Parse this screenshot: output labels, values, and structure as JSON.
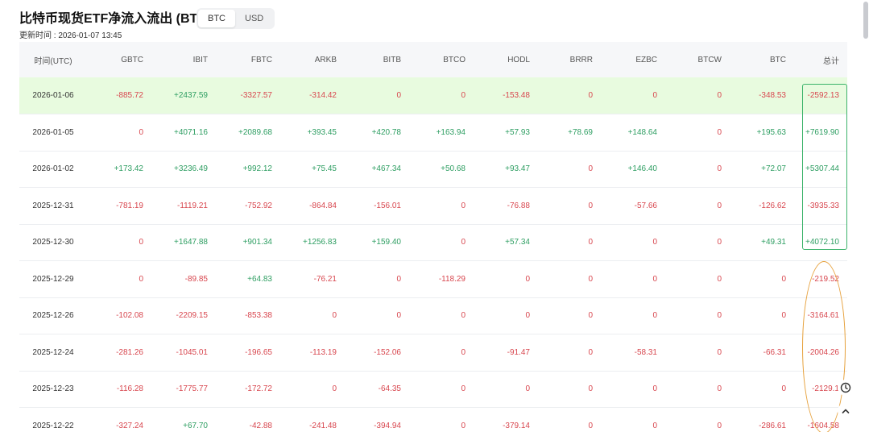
{
  "header": {
    "title": "比特币现货ETF净流入流出 (BTC)",
    "currency_toggle": [
      {
        "label": "BTC",
        "active": true
      },
      {
        "label": "USD",
        "active": false
      }
    ],
    "update_time": "更新时间 : 2026-01-07 13:45"
  },
  "table": {
    "columns": [
      "时间(UTC)",
      "GBTC",
      "IBIT",
      "FBTC",
      "ARKB",
      "BITB",
      "BTCO",
      "HODL",
      "BRRR",
      "EZBC",
      "BTCW",
      "BTC",
      "总计"
    ],
    "rows": [
      {
        "cells": [
          "2026-01-06",
          "-885.72",
          "+2437.59",
          "-3327.57",
          "-314.42",
          "0",
          "0",
          "-153.48",
          "0",
          "0",
          "0",
          "-348.53",
          "-2592.13"
        ]
      },
      {
        "cells": [
          "2026-01-05",
          "0",
          "+4071.16",
          "+2089.68",
          "+393.45",
          "+420.78",
          "+163.94",
          "+57.93",
          "+78.69",
          "+148.64",
          "0",
          "+195.63",
          "+7619.90"
        ]
      },
      {
        "cells": [
          "2026-01-02",
          "+173.42",
          "+3236.49",
          "+992.12",
          "+75.45",
          "+467.34",
          "+50.68",
          "+93.47",
          "0",
          "+146.40",
          "0",
          "+72.07",
          "+5307.44"
        ]
      },
      {
        "cells": [
          "2025-12-31",
          "-781.19",
          "-1119.21",
          "-752.92",
          "-864.84",
          "-156.01",
          "0",
          "-76.88",
          "0",
          "-57.66",
          "0",
          "-126.62",
          "-3935.33"
        ]
      },
      {
        "cells": [
          "2025-12-30",
          "0",
          "+1647.88",
          "+901.34",
          "+1256.83",
          "+159.40",
          "0",
          "+57.34",
          "0",
          "0",
          "0",
          "+49.31",
          "+4072.10"
        ]
      },
      {
        "cells": [
          "2025-12-29",
          "0",
          "-89.85",
          "+64.83",
          "-76.21",
          "0",
          "-118.29",
          "0",
          "0",
          "0",
          "0",
          "0",
          "-219.52"
        ]
      },
      {
        "cells": [
          "2025-12-26",
          "-102.08",
          "-2209.15",
          "-853.38",
          "0",
          "0",
          "0",
          "0",
          "0",
          "0",
          "0",
          "0",
          "-3164.61"
        ]
      },
      {
        "cells": [
          "2025-12-24",
          "-281.26",
          "-1045.01",
          "-196.65",
          "-113.19",
          "-152.06",
          "0",
          "-91.47",
          "0",
          "-58.31",
          "0",
          "-66.31",
          "-2004.26"
        ]
      },
      {
        "cells": [
          "2025-12-23",
          "-116.28",
          "-1775.77",
          "-172.72",
          "0",
          "-64.35",
          "0",
          "0",
          "0",
          "0",
          "0",
          "0",
          "-2129.1"
        ]
      },
      {
        "cells": [
          "2025-12-22",
          "-327.24",
          "+67.70",
          "-42.88",
          "-241.48",
          "-394.94",
          "0",
          "-379.14",
          "0",
          "0",
          "0",
          "-286.61",
          "-1604.58"
        ]
      }
    ]
  },
  "colors": {
    "positive": "#2e9e62",
    "negative": "#d8474f",
    "highlight_row": "#e8fbdf",
    "green_box": "#3bb36a",
    "orange_oval": "#e6a13c"
  },
  "icons": {
    "clock": "clock-icon",
    "scroll_up": "chevron-up-icon"
  }
}
